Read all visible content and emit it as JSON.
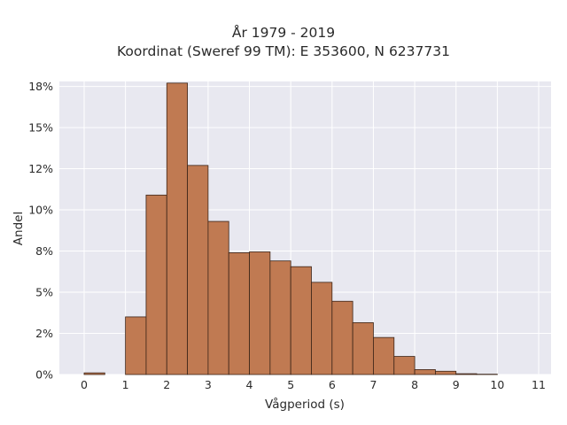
{
  "chart_data": {
    "type": "bar",
    "title_lines": [
      "År 1979 - 2019",
      "Koordinat (Sweref 99 TM): E 353600, N 6237731"
    ],
    "xlabel": "Vågperiod (s)",
    "ylabel": "Andel",
    "bin_width": 0.5,
    "xlim": [
      -0.6,
      11.3
    ],
    "ylim": [
      0,
      0.178
    ],
    "x_ticks": [
      0,
      1,
      2,
      3,
      4,
      5,
      6,
      7,
      8,
      9,
      10,
      11
    ],
    "y_ticks": [
      0,
      0.025,
      0.05,
      0.075,
      0.1,
      0.125,
      0.15,
      0.175
    ],
    "y_tick_labels": [
      "0%",
      "2%",
      "5%",
      "8%",
      "10%",
      "12%",
      "15%",
      "18%"
    ],
    "grid": true,
    "bins": [
      {
        "x": 0.0,
        "value": 0.001
      },
      {
        "x": 0.5,
        "value": 0.0
      },
      {
        "x": 1.0,
        "value": 0.035
      },
      {
        "x": 1.5,
        "value": 0.109
      },
      {
        "x": 2.0,
        "value": 0.177
      },
      {
        "x": 2.5,
        "value": 0.127
      },
      {
        "x": 3.0,
        "value": 0.093
      },
      {
        "x": 3.5,
        "value": 0.074
      },
      {
        "x": 4.0,
        "value": 0.0745
      },
      {
        "x": 4.5,
        "value": 0.069
      },
      {
        "x": 5.0,
        "value": 0.0655
      },
      {
        "x": 5.5,
        "value": 0.056
      },
      {
        "x": 6.0,
        "value": 0.0445
      },
      {
        "x": 6.5,
        "value": 0.0315
      },
      {
        "x": 7.0,
        "value": 0.0225
      },
      {
        "x": 7.5,
        "value": 0.011
      },
      {
        "x": 8.0,
        "value": 0.003
      },
      {
        "x": 8.5,
        "value": 0.002
      },
      {
        "x": 9.0,
        "value": 0.0005
      },
      {
        "x": 9.5,
        "value": 0.0002
      }
    ],
    "colors": {
      "bar_fill": "#c07a52",
      "bar_stroke": "#3b2418",
      "plot_background": "#e8e8f0",
      "grid": "#ffffff"
    }
  }
}
